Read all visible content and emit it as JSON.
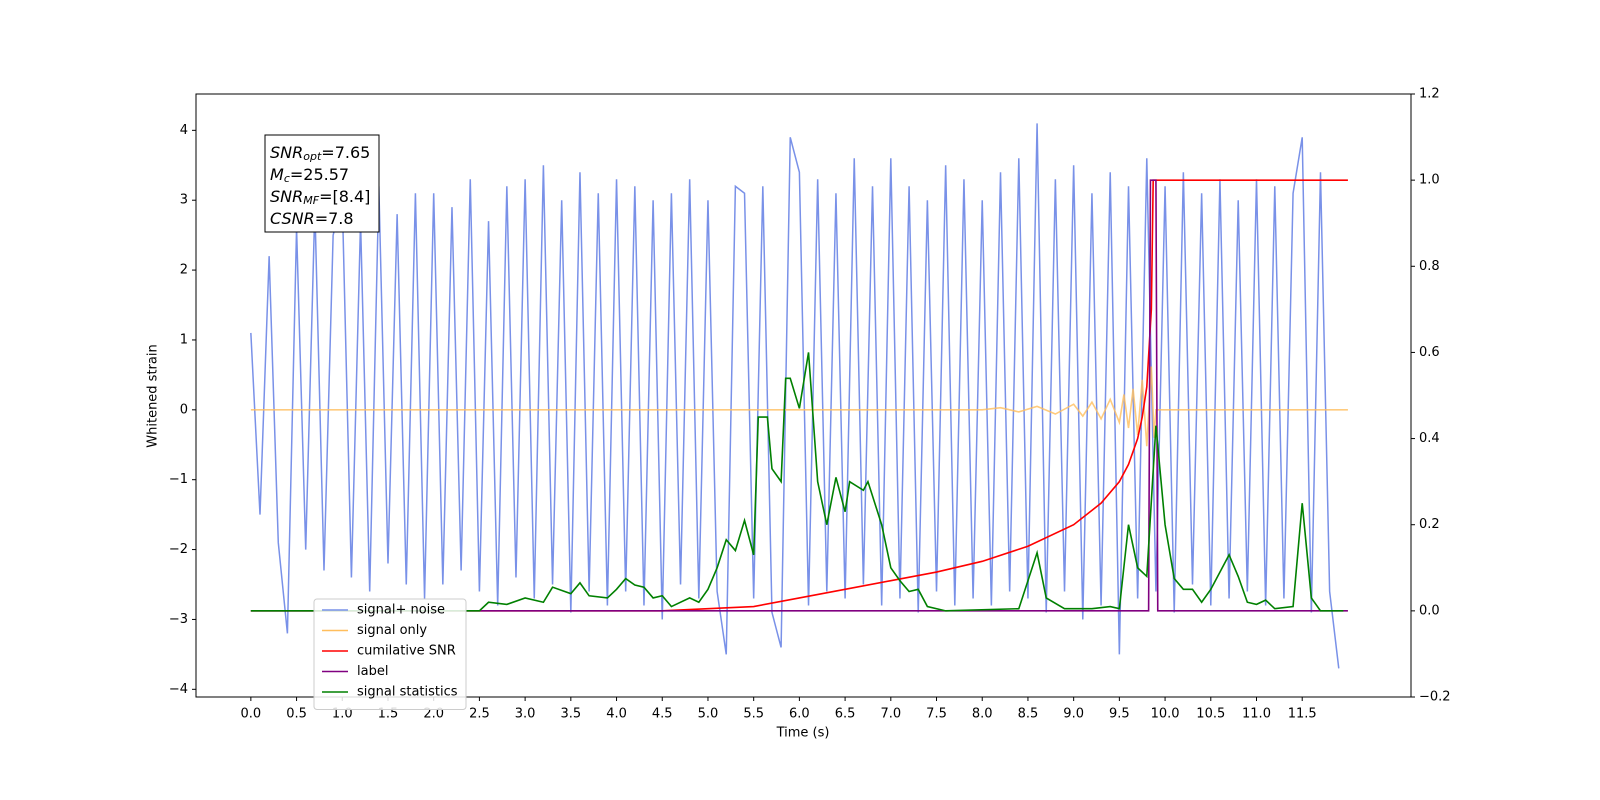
{
  "chart_data": {
    "type": "line",
    "xlabel": "Time (s)",
    "ylabel": "Whitened strain",
    "xlim": [
      -0.6,
      12.69
    ],
    "ylim": [
      -4.11,
      4.52
    ],
    "y2lim": [
      -0.2,
      1.2
    ],
    "xticks": [
      {
        "value": 0,
        "label": "0.0"
      },
      {
        "value": 0.5,
        "label": "0.5"
      },
      {
        "value": 1,
        "label": "1.0"
      },
      {
        "value": 1.5,
        "label": "1.5"
      },
      {
        "value": 2,
        "label": "2.0"
      },
      {
        "value": 2.5,
        "label": "2.5"
      },
      {
        "value": 3,
        "label": "3.0"
      },
      {
        "value": 3.5,
        "label": "3.5"
      },
      {
        "value": 4,
        "label": "4.0"
      },
      {
        "value": 4.5,
        "label": "4.5"
      },
      {
        "value": 5,
        "label": "5.0"
      },
      {
        "value": 5.5,
        "label": "5.5"
      },
      {
        "value": 6,
        "label": "6.0"
      },
      {
        "value": 6.5,
        "label": "6.5"
      },
      {
        "value": 7,
        "label": "7.0"
      },
      {
        "value": 7.5,
        "label": "7.5"
      },
      {
        "value": 8,
        "label": "8.0"
      },
      {
        "value": 8.5,
        "label": "8.5"
      },
      {
        "value": 9,
        "label": "9.0"
      },
      {
        "value": 9.5,
        "label": "9.5"
      },
      {
        "value": 10,
        "label": "10.0"
      },
      {
        "value": 10.5,
        "label": "10.5"
      },
      {
        "value": 11,
        "label": "11.0"
      },
      {
        "value": 11.5,
        "label": "11.5"
      }
    ],
    "yticks": [
      {
        "value": -4,
        "label": "−4"
      },
      {
        "value": -3,
        "label": "−3"
      },
      {
        "value": -2,
        "label": "−2"
      },
      {
        "value": -1,
        "label": "−1"
      },
      0,
      1,
      2,
      3,
      4
    ],
    "y2ticks": [
      {
        "value": -0.2,
        "label": "−0.2"
      },
      {
        "value": 0,
        "label": "0.0"
      },
      {
        "value": 0.2,
        "label": "0.2"
      },
      {
        "value": 0.4,
        "label": "0.4"
      },
      {
        "value": 0.6,
        "label": "0.6"
      },
      {
        "value": 0.8,
        "label": "0.8"
      },
      {
        "value": 1,
        "label": "1.0"
      },
      {
        "value": 1.2,
        "label": "1.2"
      }
    ],
    "legend": "lower left",
    "annotations": [
      {
        "main": "SNR",
        "sub": "opt",
        "text": "=7.65"
      },
      {
        "main": "M",
        "sub": "c",
        "text": "=25.57"
      },
      {
        "main": "SNR",
        "sub": "MF",
        "text": "=[8.4]"
      },
      {
        "main": "CSNR",
        "text": "=7.8"
      }
    ],
    "series": [
      {
        "name": "signal+ noise",
        "color": "#7991e8",
        "x": [
          0.0,
          0.1,
          0.2,
          0.3,
          0.4,
          0.5,
          0.6,
          0.7,
          0.8,
          0.9,
          1.0,
          1.1,
          1.2,
          1.3,
          1.4,
          1.5,
          1.6,
          1.7,
          1.8,
          1.9,
          2.0,
          2.1,
          2.2,
          2.3,
          2.4,
          2.5,
          2.6,
          2.7,
          2.8,
          2.9,
          3.0,
          3.1,
          3.2,
          3.3,
          3.4,
          3.5,
          3.6,
          3.7,
          3.8,
          3.9,
          4.0,
          4.1,
          4.2,
          4.3,
          4.4,
          4.5,
          4.6,
          4.7,
          4.8,
          4.9,
          5.0,
          5.1,
          5.2,
          5.3,
          5.4,
          5.5,
          5.6,
          5.7,
          5.8,
          5.9,
          6.0,
          6.1,
          6.2,
          6.3,
          6.4,
          6.5,
          6.6,
          6.7,
          6.8,
          6.9,
          7.0,
          7.1,
          7.2,
          7.3,
          7.4,
          7.5,
          7.6,
          7.7,
          7.8,
          7.9,
          8.0,
          8.1,
          8.2,
          8.3,
          8.4,
          8.5,
          8.6,
          8.7,
          8.8,
          8.9,
          9.0,
          9.1,
          9.2,
          9.3,
          9.4,
          9.5,
          9.6,
          9.7,
          9.8,
          9.9,
          10.0,
          10.1,
          10.2,
          10.3,
          10.4,
          10.5,
          10.6,
          10.7,
          10.8,
          10.9,
          11.0,
          11.1,
          11.2,
          11.3,
          11.4,
          11.5,
          11.6,
          11.7,
          11.8,
          11.9
        ],
        "values": [
          1.1,
          -1.5,
          2.2,
          -1.9,
          -3.2,
          2.6,
          -2.0,
          2.9,
          -2.3,
          2.5,
          3.0,
          -2.4,
          2.7,
          -2.6,
          3.2,
          -2.2,
          2.8,
          -2.5,
          3.1,
          -2.7,
          3.1,
          -2.5,
          2.9,
          -2.3,
          3.3,
          -2.6,
          2.7,
          -2.8,
          3.2,
          -2.4,
          3.3,
          -2.7,
          3.5,
          -2.5,
          3.0,
          -2.9,
          3.4,
          -2.6,
          3.1,
          -2.8,
          3.3,
          -2.6,
          3.2,
          -2.8,
          3.0,
          -3.0,
          3.1,
          -2.5,
          3.3,
          -2.7,
          3.0,
          -2.6,
          -3.5,
          3.2,
          3.1,
          -2.7,
          3.2,
          -2.9,
          -3.4,
          3.9,
          3.4,
          -2.8,
          3.3,
          -2.6,
          3.1,
          -2.7,
          3.6,
          -2.5,
          3.2,
          -2.8,
          3.6,
          -2.7,
          3.2,
          -2.9,
          3.0,
          -2.6,
          3.5,
          -2.8,
          3.3,
          -2.7,
          3.0,
          -2.8,
          3.4,
          -2.6,
          3.6,
          -2.7,
          4.1,
          -2.9,
          3.3,
          -2.6,
          3.5,
          -3.0,
          3.1,
          -2.8,
          3.4,
          -3.5,
          3.2,
          -2.7,
          3.6,
          -2.6,
          3.2,
          -2.9,
          3.4,
          -2.5,
          3.1,
          -2.8,
          3.3,
          -2.7,
          3.0,
          -2.6,
          3.3,
          -2.8,
          3.2,
          -2.7,
          3.1,
          3.9,
          -2.9,
          3.4,
          -2.6,
          -3.7
        ]
      },
      {
        "name": "signal only",
        "color": "#ffbe5c",
        "x": [
          0,
          8.0,
          8.2,
          8.4,
          8.6,
          8.8,
          9.0,
          9.1,
          9.2,
          9.3,
          9.4,
          9.5,
          9.55,
          9.6,
          9.65,
          9.7,
          9.75,
          9.8,
          9.85,
          9.88,
          9.9,
          12.0
        ],
        "values": [
          0,
          0,
          0.03,
          -0.03,
          0.05,
          -0.06,
          0.08,
          -0.09,
          0.11,
          -0.13,
          0.15,
          -0.18,
          0.22,
          -0.26,
          0.3,
          -0.36,
          0.43,
          -0.52,
          0.62,
          -0.4,
          0,
          0
        ]
      },
      {
        "name": "cumilative SNR",
        "color": "#ff0000",
        "axis": "y2",
        "x": [
          0,
          4.5,
          5,
          5.5,
          6,
          6.5,
          7,
          7.5,
          8,
          8.5,
          9,
          9.3,
          9.5,
          9.6,
          9.7,
          9.75,
          9.8,
          9.85,
          9.87,
          12.0
        ],
        "values": [
          0,
          0,
          0.005,
          0.01,
          0.03,
          0.05,
          0.07,
          0.09,
          0.115,
          0.15,
          0.2,
          0.25,
          0.3,
          0.34,
          0.4,
          0.45,
          0.52,
          0.7,
          1.0,
          1.0
        ]
      },
      {
        "name": "label",
        "color": "#800080",
        "axis": "y2",
        "x": [
          0,
          9.82,
          9.84,
          9.9,
          9.92,
          12.0
        ],
        "values": [
          0,
          0,
          1.0,
          1.0,
          0,
          0
        ]
      },
      {
        "name": "signal statistics",
        "color": "#008000",
        "axis": "y2",
        "x": [
          0,
          2.5,
          2.6,
          2.8,
          3.0,
          3.2,
          3.3,
          3.5,
          3.6,
          3.7,
          3.9,
          4.0,
          4.1,
          4.2,
          4.3,
          4.4,
          4.5,
          4.6,
          4.8,
          4.9,
          5.0,
          5.1,
          5.2,
          5.3,
          5.4,
          5.5,
          5.55,
          5.65,
          5.7,
          5.8,
          5.85,
          5.9,
          6.0,
          6.1,
          6.2,
          6.3,
          6.4,
          6.5,
          6.55,
          6.7,
          6.75,
          6.9,
          7.0,
          7.1,
          7.2,
          7.3,
          7.4,
          7.6,
          8.4,
          8.6,
          8.7,
          8.9,
          9.2,
          9.4,
          9.5,
          9.6,
          9.7,
          9.8,
          9.9,
          10.0,
          10.1,
          10.2,
          10.3,
          10.4,
          10.5,
          10.7,
          10.8,
          10.9,
          11.0,
          11.1,
          11.2,
          11.4,
          11.5,
          11.6,
          11.7,
          11.95
        ],
        "values": [
          0,
          0,
          0.02,
          0.015,
          0.03,
          0.02,
          0.055,
          0.04,
          0.065,
          0.035,
          0.03,
          0.05,
          0.075,
          0.06,
          0.055,
          0.03,
          0.035,
          0.01,
          0.03,
          0.02,
          0.05,
          0.1,
          0.165,
          0.14,
          0.21,
          0.13,
          0.45,
          0.45,
          0.33,
          0.3,
          0.54,
          0.54,
          0.47,
          0.6,
          0.3,
          0.2,
          0.31,
          0.23,
          0.3,
          0.28,
          0.3,
          0.2,
          0.1,
          0.07,
          0.045,
          0.05,
          0.01,
          0,
          0.005,
          0.135,
          0.03,
          0.005,
          0.005,
          0.01,
          0.005,
          0.2,
          0.1,
          0.08,
          0.43,
          0.2,
          0.075,
          0.05,
          0.05,
          0.02,
          0.05,
          0.13,
          0.08,
          0.02,
          0.015,
          0.025,
          0.005,
          0.01,
          0.25,
          0.03,
          0,
          0
        ]
      }
    ]
  }
}
